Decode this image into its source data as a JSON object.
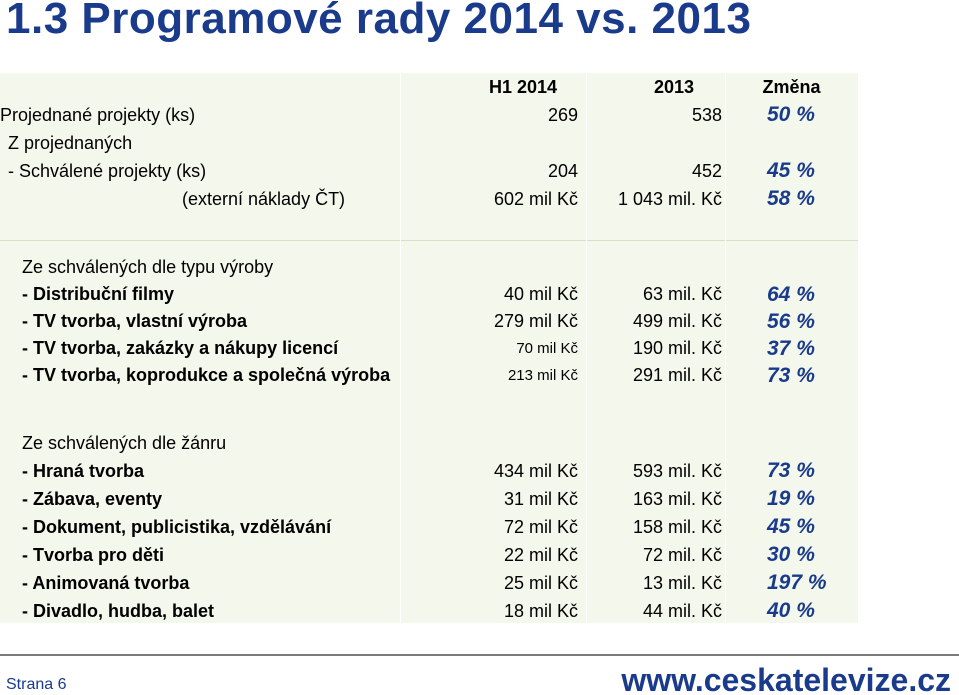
{
  "title": "1.3 Programové rady 2014 vs. 2013",
  "header": {
    "col1": "H1 2014",
    "col2": "2013",
    "col3": "Změna"
  },
  "summary": [
    {
      "label": "Projednané projekty (ks)",
      "v1": "269",
      "v2": "538",
      "change": "50 %"
    },
    {
      "label": "Z projednaných",
      "v1": "",
      "v2": "",
      "change": ""
    },
    {
      "label": "- Schválené projekty (ks)",
      "v1": "204",
      "v2": "452",
      "change": "45 %"
    },
    {
      "label": "(externí náklady ČT)",
      "v1": "602 mil Kč",
      "v2": "1 043 mil. Kč",
      "change": "58 %"
    }
  ],
  "by_type": {
    "heading": "Ze schválených dle typu výroby",
    "rows": [
      {
        "label": "- Distribuční filmy",
        "v1": "40 mil Kč",
        "v2": "63 mil. Kč",
        "change": "64 %"
      },
      {
        "label": "- TV tvorba, vlastní výroba",
        "v1": "279 mil Kč",
        "v2": "499 mil. Kč",
        "change": "56 %"
      },
      {
        "label": "- TV tvorba, zakázky a nákupy licencí",
        "v1": "70 mil Kč",
        "v2": "190 mil. Kč",
        "change": "37 %"
      },
      {
        "label": "- TV tvorba, koprodukce a společná výroba",
        "v1": "213 mil Kč",
        "v2": "291 mil. Kč",
        "change": "73 %"
      }
    ]
  },
  "by_genre": {
    "heading": "Ze schválených dle žánru",
    "rows": [
      {
        "label": "- Hraná tvorba",
        "v1": "434 mil Kč",
        "v2": "593 mil. Kč",
        "change": "73 %"
      },
      {
        "label": "- Zábava, eventy",
        "v1": "31 mil Kč",
        "v2": "163 mil. Kč",
        "change": "19 %"
      },
      {
        "label": "- Dokument, publicistika, vzdělávání",
        "v1": "72 mil Kč",
        "v2": "158 mil. Kč",
        "change": "45 %"
      },
      {
        "label": "- Tvorba pro děti",
        "v1": "22 mil Kč",
        "v2": "72 mil. Kč",
        "change": "30 %"
      },
      {
        "label": "- Animovaná tvorba",
        "v1": "25 mil Kč",
        "v2": "13 mil. Kč",
        "change": "197 %"
      },
      {
        "label": "- Divadlo, hudba, balet",
        "v1": "18 mil Kč",
        "v2": "44 mil. Kč",
        "change": "40 %"
      }
    ]
  },
  "footer": {
    "page": "Strana 6",
    "url": "www.ceskatelevize.cz"
  },
  "colors": {
    "accent": "#1a3a8c",
    "table_bg": "#f3f7ec"
  }
}
